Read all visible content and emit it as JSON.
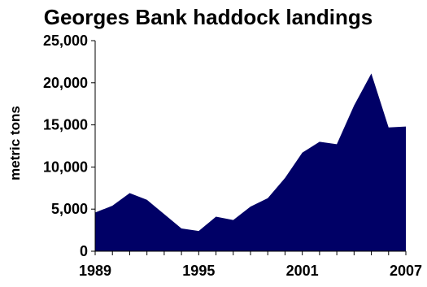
{
  "chart_data": {
    "type": "area",
    "title": "Georges Bank haddock landings",
    "ylabel": "metric tons",
    "xlabel": "",
    "x": [
      1989,
      1990,
      1991,
      1992,
      1993,
      1994,
      1995,
      1996,
      1997,
      1998,
      1999,
      2000,
      2001,
      2002,
      2003,
      2004,
      2005,
      2006,
      2007
    ],
    "series": [
      {
        "values": [
          4600,
          5400,
          6900,
          6100,
          4400,
          2700,
          2400,
          4100,
          3700,
          5300,
          6300,
          8700,
          11700,
          13000,
          12700,
          17300,
          21100,
          14700,
          14800
        ]
      }
    ],
    "xlim": [
      1989,
      2007
    ],
    "ylim": [
      0,
      25000
    ],
    "x_ticks": [
      "1989",
      "1995",
      "2001",
      "2007"
    ],
    "y_ticks": [
      "0",
      "5,000",
      "10,000",
      "15,000",
      "20,000",
      "25,000"
    ],
    "grid": false,
    "legend": "none",
    "colors": {
      "area_fill": "#000066",
      "axis": "#000000",
      "text": "#000000",
      "background": "#ffffff"
    }
  }
}
